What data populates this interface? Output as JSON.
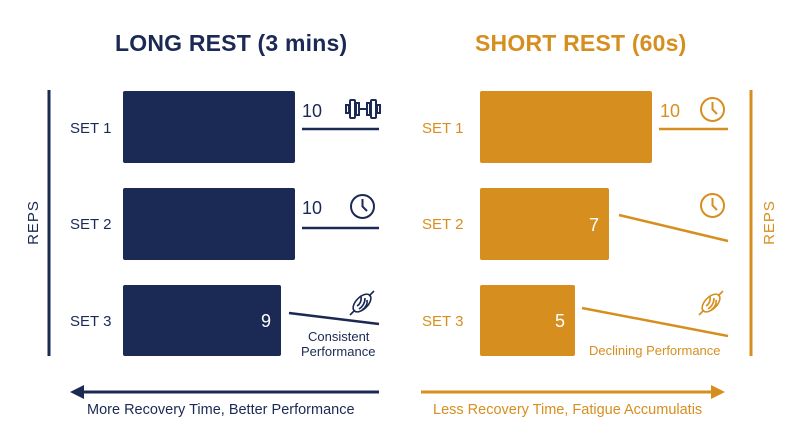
{
  "left": {
    "title": "LONG REST (3 mins)",
    "axis_label": "REPS",
    "footer": "More Recovery Time, Better Performance",
    "caption_line1": "Consistent",
    "caption_line2": "Performance",
    "sets": [
      {
        "label": "SET 1",
        "value": "10",
        "show_in_bar": false,
        "icon": "dumbbell-icon"
      },
      {
        "label": "SET 2",
        "value": "10",
        "show_in_bar": false,
        "icon": "clock-icon"
      },
      {
        "label": "SET 3",
        "value": "9",
        "show_in_bar": true,
        "icon": "muscle-icon"
      }
    ]
  },
  "right": {
    "title": "SHORT REST (60s)",
    "axis_label": "REPS",
    "footer": "Less Recovery Time, Fatigue Accumulatis",
    "caption": "Declining Performance",
    "sets": [
      {
        "label": "SET 1",
        "value": "10",
        "show_in_bar": false,
        "icon": "clock-icon"
      },
      {
        "label": "SET 2",
        "value": "7",
        "show_in_bar": true,
        "icon": "clock-icon"
      },
      {
        "label": "SET 3",
        "value": "5",
        "show_in_bar": true,
        "icon": "muscle-icon"
      }
    ]
  },
  "colors": {
    "navy": "#1b2a55",
    "gold": "#d68f1f"
  }
}
